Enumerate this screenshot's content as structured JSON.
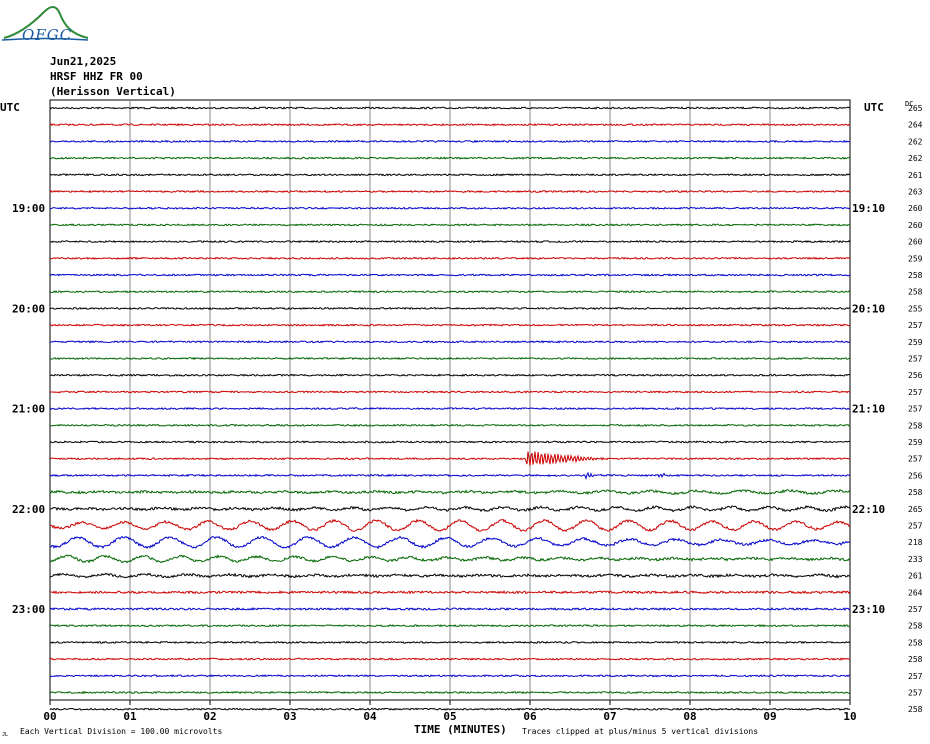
{
  "logo": {
    "text": "OFGC"
  },
  "header": {
    "date": "Jun21,2025",
    "station": "HRSF HHZ FR 00",
    "component": "(Herisson Vertical)"
  },
  "chart_data": {
    "type": "line",
    "title": "Jun21,2025",
    "left_axis_label": "UTC",
    "right_axis_label": "UTC",
    "dc_label": "DC",
    "xlabel": "TIME (MINUTES)",
    "x_ticks": [
      "00",
      "01",
      "02",
      "03",
      "04",
      "05",
      "06",
      "07",
      "08",
      "09",
      "10"
    ],
    "xlim": [
      0,
      10
    ],
    "left_hour_labels": [
      {
        "row": 6,
        "label": "19:00"
      },
      {
        "row": 12,
        "label": "20:00"
      },
      {
        "row": 18,
        "label": "21:00"
      },
      {
        "row": 24,
        "label": "22:00"
      },
      {
        "row": 30,
        "label": "23:00"
      }
    ],
    "right_hour_labels": [
      {
        "row": 6,
        "label": "19:10"
      },
      {
        "row": 12,
        "label": "20:10"
      },
      {
        "row": 18,
        "label": "21:10"
      },
      {
        "row": 24,
        "label": "22:10"
      },
      {
        "row": 30,
        "label": "23:10"
      }
    ],
    "trace_colors": [
      "#000000",
      "#cc0000",
      "#0000cc",
      "#006600"
    ],
    "dc_offsets": [
      265,
      264,
      262,
      262,
      261,
      263,
      260,
      260,
      260,
      259,
      258,
      258,
      255,
      257,
      259,
      257,
      256,
      257,
      257,
      258,
      259,
      257,
      256,
      258,
      265,
      257,
      218,
      233,
      261,
      264,
      257,
      258,
      258,
      258,
      257,
      257,
      258
    ],
    "trace_amplitudes": [
      1,
      1,
      1,
      1,
      1,
      1,
      1,
      1,
      1,
      1,
      1,
      1,
      1,
      1,
      1,
      1,
      1,
      1,
      1,
      1,
      1,
      1,
      1,
      1.6,
      1.8,
      5,
      5,
      3,
      2,
      1.4,
      1.2,
      1,
      1,
      1,
      1,
      1,
      1
    ],
    "events": [
      {
        "row": 21,
        "start_min": 5.95,
        "end_min": 6.9,
        "amplitude_divisions": 3.5
      },
      {
        "row": 22,
        "start_min": 6.7,
        "end_min": 6.9,
        "amplitude_divisions": 1.2
      },
      {
        "row": 22,
        "start_min": 7.6,
        "end_min": 7.8,
        "amplitude_divisions": 1.0
      }
    ],
    "footer_left": "Each Vertical Division = 100.00 microvolts",
    "footer_right": "Traces clipped at plus/minus 5 vertical divisions",
    "corner_mark": "JL"
  }
}
